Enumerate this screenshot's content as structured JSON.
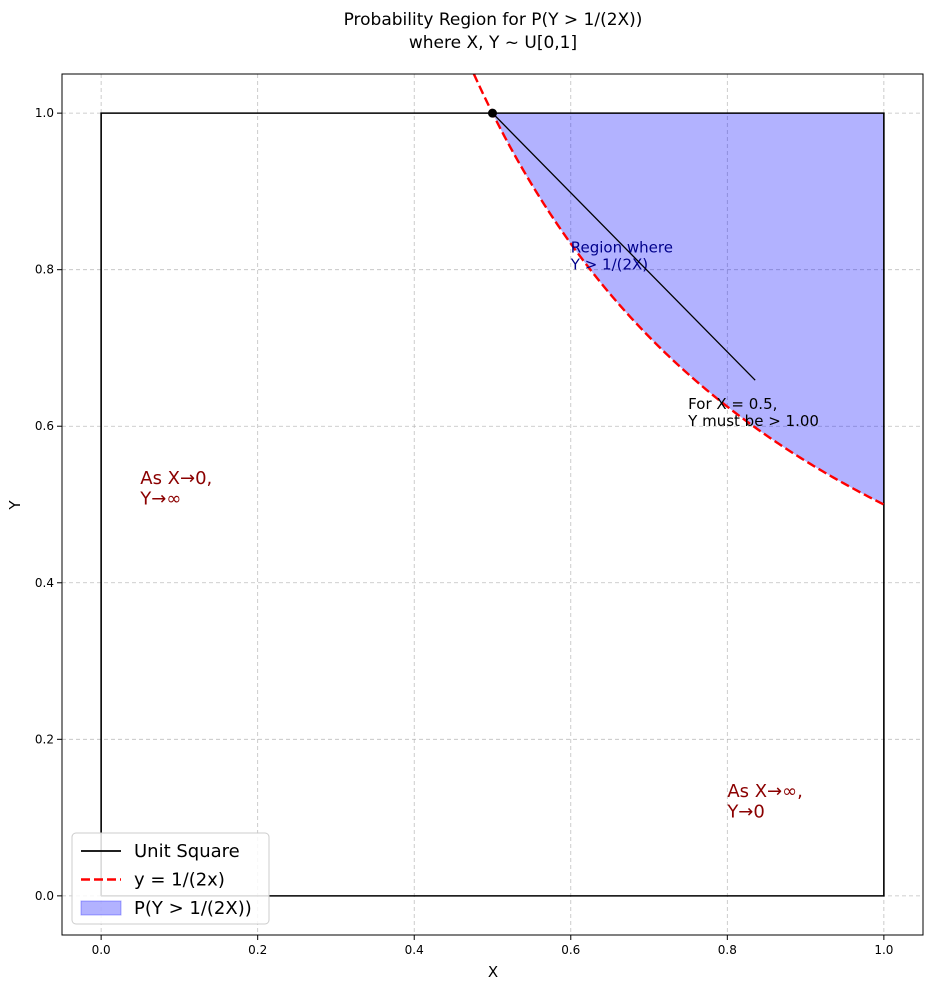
{
  "chart_data": {
    "type": "area",
    "title_lines": [
      "Probability Region for P(Y > 1/(2X))",
      "where X, Y ~ U[0,1]"
    ],
    "xlabel": "X",
    "ylabel": "Y",
    "xlim": [
      -0.05,
      1.05
    ],
    "ylim": [
      -0.05,
      1.05
    ],
    "xticks": [
      0.0,
      0.2,
      0.4,
      0.6,
      0.8,
      1.0
    ],
    "yticks": [
      0.0,
      0.2,
      0.4,
      0.6,
      0.8,
      1.0
    ],
    "xtick_labels": [
      "0.0",
      "0.2",
      "0.4",
      "0.6",
      "0.8",
      "1.0"
    ],
    "ytick_labels": [
      "0.0",
      "0.2",
      "0.4",
      "0.6",
      "0.8",
      "1.0"
    ],
    "grid": true,
    "legend_placement": "lower-left",
    "series": [
      {
        "name": "Unit Square",
        "kind": "line",
        "color": "#000000",
        "style": "solid",
        "x": [
          0,
          1,
          1,
          0,
          0
        ],
        "y": [
          0,
          0,
          1,
          1,
          0
        ]
      },
      {
        "name": "y = 1/(2x)",
        "kind": "curve",
        "function": "1/(2x)",
        "color": "#ff0000",
        "style": "dashed",
        "x_range": [
          0.45,
          1.0
        ]
      },
      {
        "name": "P(Y > 1/(2X))",
        "kind": "fill",
        "function": "1/(2x)",
        "color": "#0000ff",
        "alpha": 0.3,
        "x_range": [
          0.5,
          1.0
        ],
        "y_top": 1.0
      }
    ],
    "point": {
      "x": 0.5,
      "y": 1.0,
      "color": "#000000"
    },
    "annotations": [
      {
        "lines": [
          "Region where",
          "Y > 1/(2X)"
        ],
        "x": 0.6,
        "y": 0.8,
        "color": "#00008b"
      },
      {
        "lines": [
          "For X = 0.5,",
          "Y must be > 1.00"
        ],
        "x": 0.75,
        "y": 0.6,
        "color": "#000000",
        "arrow_to": [
          0.5,
          1.0
        ]
      },
      {
        "lines": [
          "As X→0,",
          "Y→∞"
        ],
        "x": 0.05,
        "y": 0.5,
        "color": "#8b0000"
      },
      {
        "lines": [
          "As X→∞,",
          "Y→0"
        ],
        "x": 0.8,
        "y": 0.1,
        "color": "#8b0000"
      }
    ]
  }
}
